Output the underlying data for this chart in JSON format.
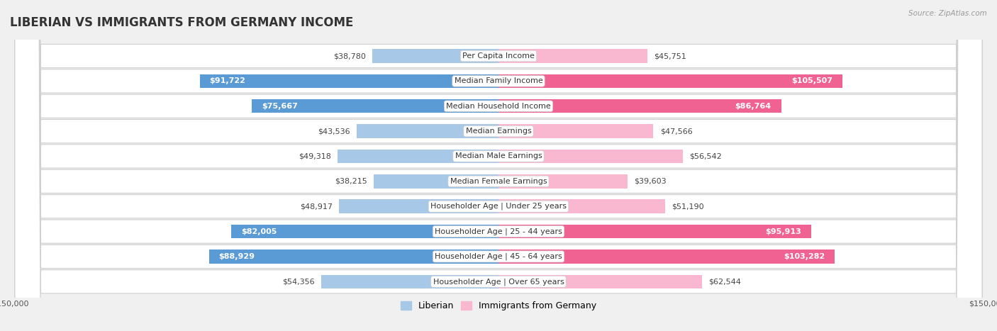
{
  "title": "LIBERIAN VS IMMIGRANTS FROM GERMANY INCOME",
  "source": "Source: ZipAtlas.com",
  "categories": [
    "Per Capita Income",
    "Median Family Income",
    "Median Household Income",
    "Median Earnings",
    "Median Male Earnings",
    "Median Female Earnings",
    "Householder Age | Under 25 years",
    "Householder Age | 25 - 44 years",
    "Householder Age | 45 - 64 years",
    "Householder Age | Over 65 years"
  ],
  "liberian_values": [
    38780,
    91722,
    75667,
    43536,
    49318,
    38215,
    48917,
    82005,
    88929,
    54356
  ],
  "germany_values": [
    45751,
    105507,
    86764,
    47566,
    56542,
    39603,
    51190,
    95913,
    103282,
    62544
  ],
  "liberian_labels": [
    "$38,780",
    "$91,722",
    "$75,667",
    "$43,536",
    "$49,318",
    "$38,215",
    "$48,917",
    "$82,005",
    "$88,929",
    "$54,356"
  ],
  "germany_labels": [
    "$45,751",
    "$105,507",
    "$86,764",
    "$47,566",
    "$56,542",
    "$39,603",
    "$51,190",
    "$95,913",
    "$103,282",
    "$62,544"
  ],
  "liberian_color_light": "#a8c8e8",
  "liberian_color_dark": "#5b9bd5",
  "germany_color_light": "#f9b8d0",
  "germany_color_dark": "#f06292",
  "liberian_dark_rows": [
    1,
    2,
    7,
    8
  ],
  "germany_dark_rows": [
    1,
    2,
    7,
    8
  ],
  "axis_limit": 150000,
  "bar_height": 0.55,
  "bg_color": "#f0f0f0",
  "row_bg": "#f7f7f7",
  "row_border": "#d0d0d0",
  "title_fontsize": 12,
  "value_fontsize": 8,
  "cat_fontsize": 8,
  "legend_fontsize": 9,
  "axis_label_fontsize": 8
}
